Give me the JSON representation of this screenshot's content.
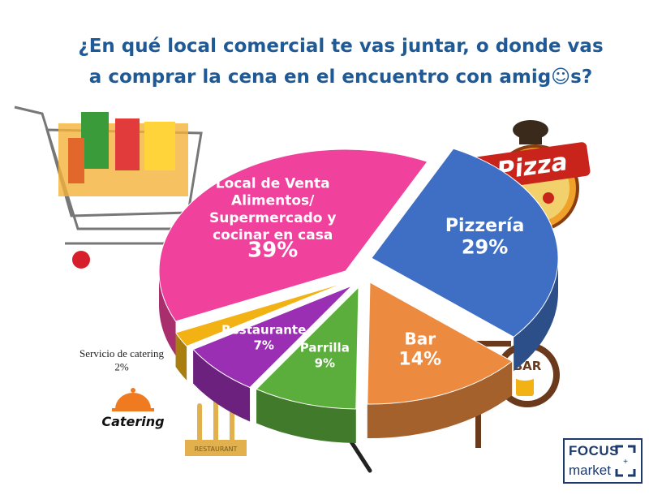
{
  "title_line1": "¿En qué local comercial te vas juntar, o donde vas",
  "title_line2": "a comprar la cena en el encuentro con amig☺s?",
  "chart_data": {
    "type": "pie",
    "title": "¿En qué local comercial te vas juntar, o donde vas a comprar la cena en el encuentro con amig☺s?",
    "slices": [
      {
        "label": "Pizzería",
        "label_lines": [
          "Pizzería"
        ],
        "value": 29,
        "value_label": "29%",
        "color": "#3f6fc4"
      },
      {
        "label": "Bar",
        "label_lines": [
          "Bar"
        ],
        "value": 14,
        "value_label": "14%",
        "color": "#ec8a3f"
      },
      {
        "label": "Parrilla",
        "label_lines": [
          "Parrilla"
        ],
        "value": 9,
        "value_label": "9%",
        "color": "#5cae3c"
      },
      {
        "label": "Restaurante",
        "label_lines": [
          "Restaurante"
        ],
        "value": 7,
        "value_label": "7%",
        "color": "#9b2fb4"
      },
      {
        "label": "Servicio de catering",
        "label_lines": [
          "Servicio de catering"
        ],
        "value": 2,
        "value_label": "2%",
        "color": "#f2b214"
      },
      {
        "label": "Local de Venta Alimentos/ Supermercado y cocinar en casa",
        "label_lines": [
          "Local de Venta",
          "Alimentos/",
          "Supermercado y",
          "cocinar en casa"
        ],
        "value": 39,
        "value_label": "39%",
        "color": "#f0419c"
      }
    ]
  },
  "decorations": {
    "pizza_sign": "Pizza",
    "bar_sign": "BAR",
    "catering_text": "Catering",
    "restaurant_badge": "RESTAURANT",
    "logo_line1": "FOCUS",
    "logo_line2": "market"
  }
}
